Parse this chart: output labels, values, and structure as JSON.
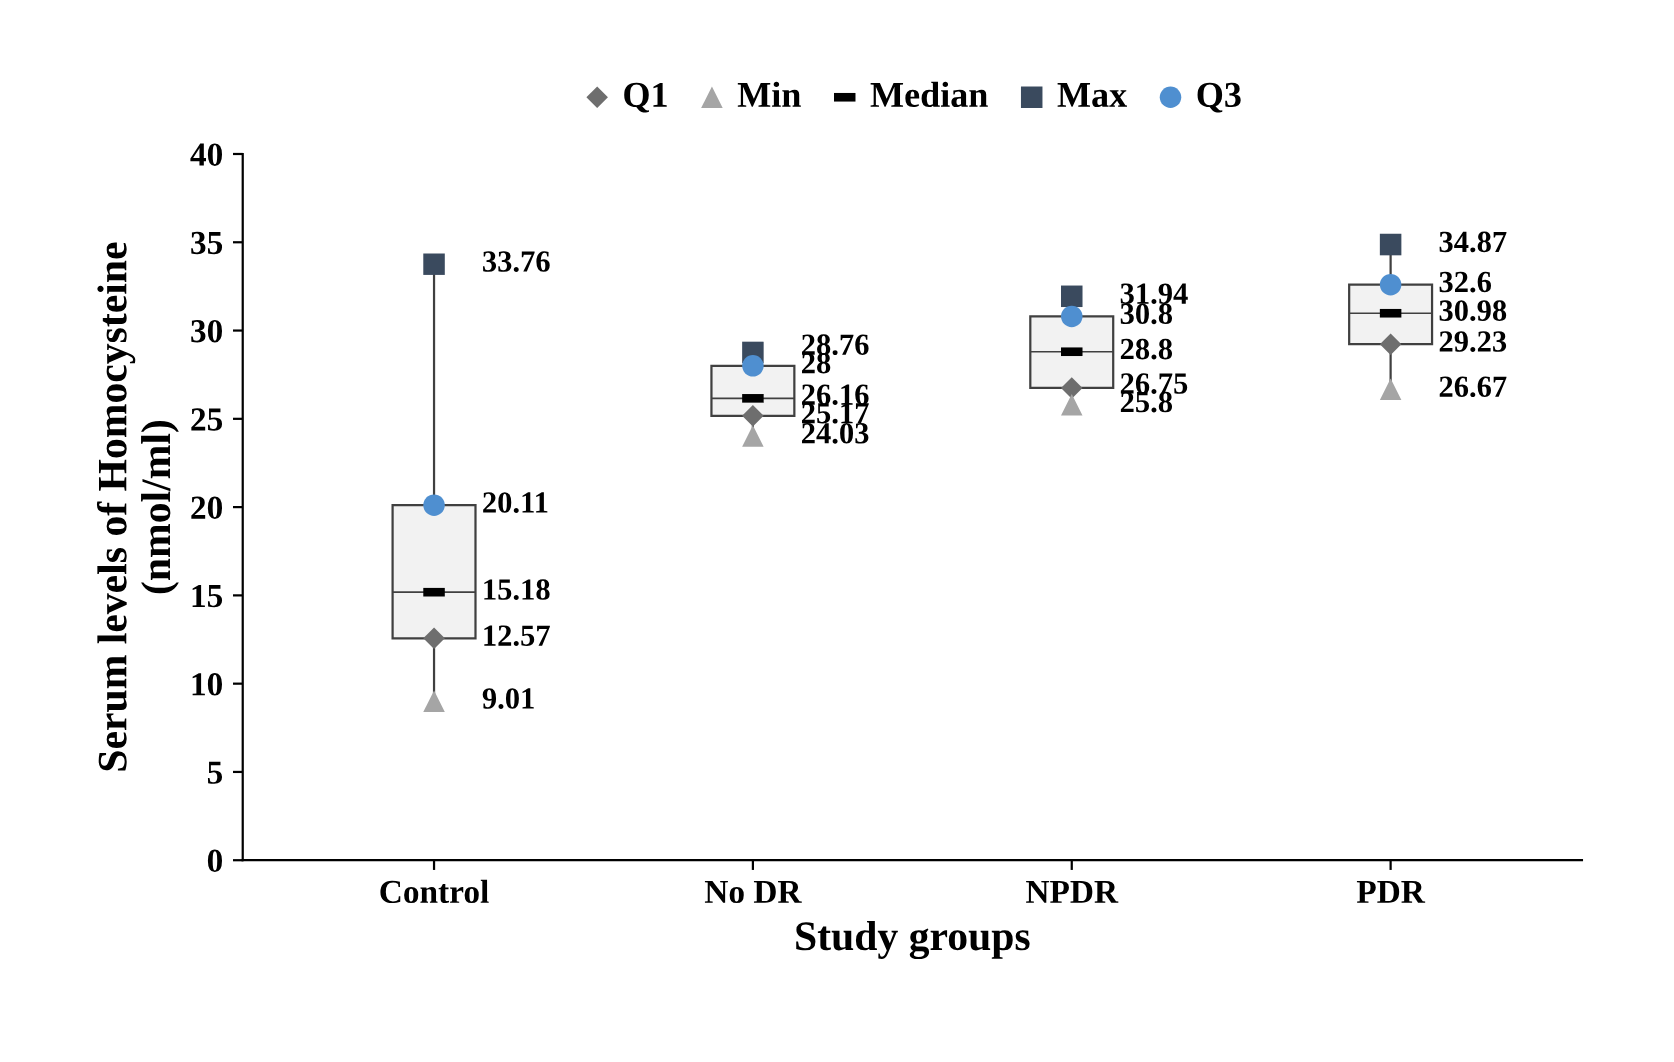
{
  "chart_data": {
    "type": "box",
    "xlabel": "Study groups",
    "ylabel": "Serum levels of Homocysteine\n(nmol/ml)",
    "categories": [
      "Control",
      "No DR",
      "NPDR",
      "PDR"
    ],
    "boxes": [
      {
        "low": 9.01,
        "q1": 12.57,
        "median": 15.18,
        "q3": 20.11,
        "high": 33.76
      },
      {
        "low": 24.03,
        "q1": 25.17,
        "median": 26.16,
        "q3": 28,
        "high": 28.76
      },
      {
        "low": 25.8,
        "q1": 26.75,
        "median": 28.8,
        "q3": 30.8,
        "high": 31.94
      },
      {
        "low": 26.67,
        "q1": 29.23,
        "median": 30.98,
        "q3": 32.6,
        "high": 34.87
      }
    ],
    "series": [
      {
        "name": "Q1",
        "type": "scatter",
        "marker": "diamond",
        "color": "#6e6e6e",
        "x": [
          "Control",
          "No DR",
          "NPDR",
          "PDR"
        ],
        "values": [
          12.57,
          25.17,
          26.75,
          29.23
        ]
      },
      {
        "name": "Min",
        "type": "scatter",
        "marker": "triangle",
        "color": "#a5a5a5",
        "x": [
          "Control",
          "No DR",
          "NPDR",
          "PDR"
        ],
        "values": [
          9.01,
          24.03,
          25.8,
          26.67
        ]
      },
      {
        "name": "Median",
        "type": "scatter",
        "color": "#000000",
        "x": [
          "Control",
          "No DR",
          "NPDR",
          "PDR"
        ],
        "values": [
          15.18,
          26.16,
          28.8,
          30.98
        ]
      },
      {
        "name": "Max",
        "type": "scatter",
        "marker": "square",
        "color": "#3a4a5e",
        "x": [
          "Control",
          "No DR",
          "NPDR",
          "PDR"
        ],
        "values": [
          33.76,
          28.76,
          31.94,
          34.87
        ]
      },
      {
        "name": "Q3",
        "type": "scatter",
        "marker": "circle",
        "color": "#4f8fd0",
        "x": [
          "Control",
          "No DR",
          "NPDR",
          "PDR"
        ],
        "values": [
          20.11,
          28,
          30.8,
          32.6
        ]
      }
    ],
    "ylim": [
      0,
      40
    ],
    "yticks": [
      0,
      5,
      10,
      15,
      20,
      25,
      30,
      35,
      40
    ],
    "data_labels": true,
    "legend": "top",
    "grid": false
  }
}
